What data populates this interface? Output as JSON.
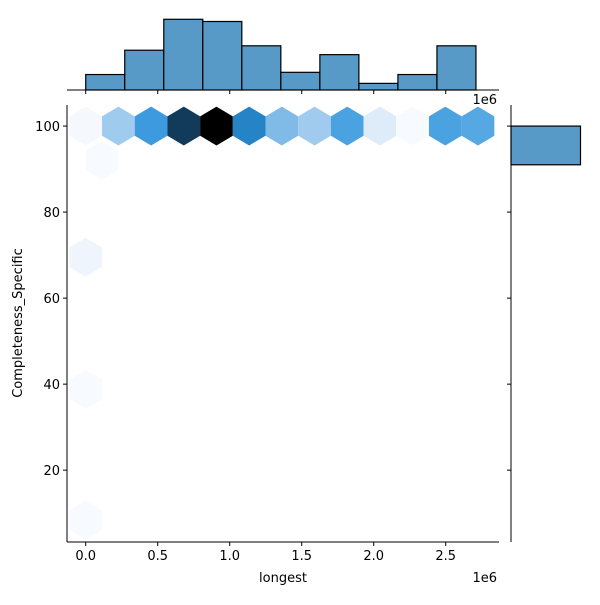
{
  "chart_data": {
    "type": "hexbin",
    "xlabel": "longest",
    "ylabel": "Completeness_Specific",
    "x_offset_label": "1e6",
    "xlim": [
      -0.13,
      2.87
    ],
    "ylim": [
      3.3,
      104.9
    ],
    "x_unit_scale": 1000000,
    "xticks": [
      0.0,
      0.5,
      1.0,
      1.5,
      2.0,
      2.5
    ],
    "xtick_labels": [
      "0.0",
      "0.5",
      "1.0",
      "1.5",
      "2.0",
      "2.5"
    ],
    "yticks": [
      20,
      40,
      60,
      80,
      100
    ],
    "ytick_labels": [
      "20",
      "40",
      "60",
      "80",
      "100"
    ],
    "hexbins": [
      {
        "x": 0.0,
        "y": 100,
        "count": 1,
        "color": "#f5f9fd"
      },
      {
        "x": 0.227,
        "y": 100,
        "count": 8,
        "color": "#9ecbee"
      },
      {
        "x": 0.454,
        "y": 100,
        "count": 16,
        "color": "#3d9ade"
      },
      {
        "x": 0.681,
        "y": 100,
        "count": 27,
        "color": "#123a5a"
      },
      {
        "x": 0.908,
        "y": 100,
        "count": 32,
        "color": "#000000"
      },
      {
        "x": 1.135,
        "y": 100,
        "count": 19,
        "color": "#2484c6"
      },
      {
        "x": 1.362,
        "y": 100,
        "count": 11,
        "color": "#7fbbe6"
      },
      {
        "x": 1.589,
        "y": 100,
        "count": 8,
        "color": "#a0cbee"
      },
      {
        "x": 1.816,
        "y": 100,
        "count": 15,
        "color": "#4aa3e0"
      },
      {
        "x": 2.043,
        "y": 100,
        "count": 3,
        "color": "#deebf8"
      },
      {
        "x": 2.27,
        "y": 100,
        "count": 1,
        "color": "#f7fbff"
      },
      {
        "x": 2.497,
        "y": 100,
        "count": 15,
        "color": "#4aa3e0"
      },
      {
        "x": 2.724,
        "y": 100,
        "count": 14,
        "color": "#55a8e2"
      },
      {
        "x": 0.113,
        "y": 92,
        "count": 1,
        "color": "#f7fbff"
      },
      {
        "x": 0.0,
        "y": 69.5,
        "count": 1,
        "color": "#eef5fc"
      },
      {
        "x": 0.0,
        "y": 38.8,
        "count": 1,
        "color": "#f7fbff"
      },
      {
        "x": 0.0,
        "y": 8.4,
        "count": 1,
        "color": "#f7fbff"
      }
    ],
    "marginal_x_hist": {
      "bin_edges": [
        0.0,
        0.271,
        0.542,
        0.813,
        1.084,
        1.355,
        1.626,
        1.897,
        2.168,
        2.439,
        2.71
      ],
      "counts": [
        7,
        18,
        32,
        31,
        20,
        8,
        16,
        3,
        7,
        20
      ],
      "count_max": 36.2
    },
    "marginal_y_hist": {
      "bins": [
        {
          "from": 91,
          "to": 100,
          "count": 159
        }
      ],
      "count_max": 167
    },
    "colors": {
      "bar_fill": "#5799c7",
      "bar_edge": "#000000"
    }
  }
}
